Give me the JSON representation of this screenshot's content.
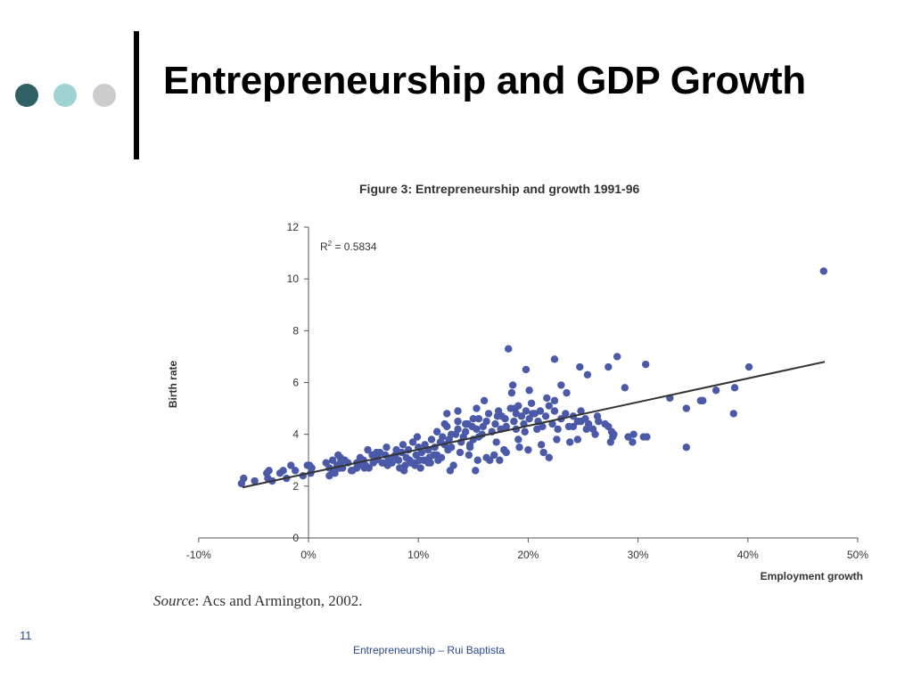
{
  "slide": {
    "title": "Entrepreneurship and GDP Growth",
    "number": "11",
    "footer": "Entrepreneurship – Rui Baptista",
    "bullet_colors": [
      "#2e6064",
      "#9fd2d2",
      "#cccccc"
    ]
  },
  "figure": {
    "title": "Figure 3: Entrepreneurship and growth 1991-96",
    "source_label": "Source",
    "source_text": ": Acs and Armington, 2002."
  },
  "chart_data": {
    "type": "scatter",
    "xlabel": "Employment growth",
    "ylabel": "Birth rate",
    "xlim": [
      -10,
      50
    ],
    "ylim": [
      0,
      12
    ],
    "x_ticks": [
      -10,
      0,
      10,
      20,
      30,
      40,
      50
    ],
    "x_tick_labels": [
      "-10%",
      "0%",
      "10%",
      "20%",
      "30%",
      "40%",
      "50%"
    ],
    "y_ticks": [
      0,
      2,
      4,
      6,
      8,
      10,
      12
    ],
    "y_tick_labels": [
      "0",
      "2",
      "4",
      "6",
      "8",
      "10",
      "12"
    ],
    "grid": false,
    "marker_color": "#4a5aa8",
    "trendline_color": "#333333",
    "annotation": {
      "text": "R",
      "superscript": "2",
      "value": " = 0.5834"
    },
    "trendline": {
      "x": [
        -6,
        47
      ],
      "y": [
        1.95,
        6.8
      ]
    },
    "points": {
      "x": [
        -6.1,
        -5.9,
        -4.9,
        -3.8,
        -3.6,
        -3.7,
        -3.3,
        -2.6,
        -2.3,
        -2.0,
        -1.6,
        -1.2,
        -0.5,
        -0.1,
        0.2,
        0.3,
        0.1,
        1.6,
        1.9,
        2.2,
        2.6,
        2.9,
        2.9,
        3.3,
        2.2,
        3.1,
        4.4,
        4.7,
        5.0,
        4.4,
        5.2,
        5.8,
        5.9,
        6.1,
        6.5,
        6.7,
        7.0,
        7.3,
        7.1,
        7.6,
        7.9,
        8.0,
        8.2,
        8.5,
        8.6,
        8.9,
        9.1,
        9.5,
        9.3,
        9.8,
        10.0,
        10.3,
        9.9,
        10.1,
        10.6,
        10.9,
        11.2,
        11.5,
        11.7,
        11.0,
        12.0,
        12.2,
        11.7,
        12.4,
        12.7,
        12.6,
        12.8,
        13.0,
        13.4,
        13.6,
        13.9,
        13.6,
        14.1,
        14.3,
        14.7,
        14.5,
        15.0,
        15.3,
        15.5,
        15.3,
        15.8,
        15.9,
        15.5,
        16.2,
        16.4,
        16.7,
        17.0,
        17.2,
        17.5,
        17.3,
        17.9,
        18.0,
        18.4,
        18.5,
        18.7,
        18.9,
        18.9,
        19.1,
        19.4,
        19.6,
        19.8,
        20.1,
        20.3,
        19.7,
        20.6,
        20.9,
        21.3,
        21.6,
        21.9,
        22.2,
        22.4,
        22.7,
        23.0,
        23.4,
        23.7,
        24.1,
        24.5,
        24.8,
        25.2,
        25.5,
        25.9,
        26.4,
        27.0,
        27.3,
        27.6,
        27.8,
        27.5,
        29.1,
        29.6,
        30.5,
        30.7,
        19.8,
        22.4,
        24.7,
        25.4,
        27.3,
        28.1,
        28.8,
        18.6,
        20.1,
        22.4,
        23.0,
        24.8,
        12.4,
        13.6,
        15.0,
        14.3,
        17.6,
        16.0,
        18.8,
        20.4,
        21.1,
        21.7,
        23.5,
        24.1,
        20.8,
        14.9,
        13.0,
        12.6,
        18.2,
        32.9,
        34.4,
        35.7,
        37.1,
        38.8,
        40.1,
        46.9,
        38.7,
        34.4,
        35.9,
        30.8,
        29.5,
        27.7,
        26.1,
        25.3,
        22.6,
        21.2,
        20.0,
        19.2,
        18.0,
        17.4,
        16.2,
        15.4,
        14.6,
        13.8,
        12.9,
        11.8,
        10.9,
        10.2,
        9.7,
        9.2,
        8.7,
        8.3,
        7.6,
        7.2,
        6.3,
        6.8,
        5.5,
        5.1,
        4.6,
        4.0,
        3.6,
        3.9,
        2.8,
        2.4,
        1.9,
        16.9,
        17.8,
        13.2,
        14.7,
        17.1,
        19.1,
        21.4,
        23.8,
        26.3,
        24.5,
        21.9,
        11.4,
        10.5,
        9.6,
        8.8,
        6.2,
        5.4,
        2.7,
        15.2,
        16.5,
        12.1,
        11.1
      ],
      "y": [
        2.1,
        2.3,
        2.2,
        2.5,
        2.6,
        2.3,
        2.2,
        2.5,
        2.6,
        2.3,
        2.8,
        2.6,
        2.4,
        2.8,
        2.5,
        2.7,
        2.8,
        2.9,
        2.7,
        3.0,
        2.8,
        3.1,
        2.9,
        3.0,
        2.6,
        2.7,
        2.9,
        3.1,
        3.0,
        2.7,
        2.8,
        3.2,
        2.9,
        3.0,
        3.3,
        2.9,
        3.2,
        3.0,
        3.5,
        3.1,
        3.2,
        3.4,
        3.0,
        3.3,
        3.6,
        3.1,
        3.4,
        3.7,
        2.9,
        3.2,
        3.5,
        3.3,
        3.9,
        3.0,
        3.6,
        3.4,
        3.8,
        3.5,
        3.2,
        3.1,
        3.7,
        3.9,
        4.1,
        3.6,
        3.4,
        4.3,
        3.8,
        3.5,
        4.0,
        4.2,
        3.7,
        4.5,
        3.9,
        4.1,
        3.6,
        4.4,
        3.8,
        4.2,
        4.6,
        5.0,
        4.0,
        4.3,
        3.9,
        4.5,
        4.8,
        4.1,
        4.4,
        4.7,
        4.2,
        4.9,
        4.6,
        4.3,
        5.0,
        5.6,
        4.5,
        4.8,
        4.2,
        5.1,
        4.7,
        4.4,
        4.9,
        4.6,
        5.2,
        4.1,
        4.8,
        4.5,
        4.3,
        4.7,
        5.1,
        4.4,
        4.9,
        4.2,
        4.6,
        4.8,
        4.3,
        4.7,
        4.5,
        4.9,
        4.6,
        4.4,
        4.2,
        4.5,
        4.4,
        4.3,
        4.1,
        4.0,
        3.7,
        3.9,
        4.0,
        3.9,
        6.7,
        6.5,
        6.9,
        6.6,
        6.3,
        6.6,
        7.0,
        5.8,
        5.9,
        5.7,
        5.3,
        5.9,
        4.5,
        4.4,
        4.9,
        4.6,
        4.4,
        4.7,
        5.3,
        5.0,
        4.8,
        4.9,
        5.4,
        5.6,
        4.3,
        4.2,
        4.3,
        4.0,
        4.8,
        7.3,
        5.4,
        5.0,
        5.3,
        5.7,
        5.8,
        6.6,
        10.3,
        4.8,
        3.5,
        5.3,
        3.9,
        3.7,
        3.9,
        4.0,
        4.2,
        3.8,
        3.6,
        3.4,
        3.5,
        3.3,
        3.0,
        3.1,
        3.0,
        3.2,
        3.3,
        2.6,
        3.0,
        2.9,
        2.7,
        2.8,
        3.0,
        2.6,
        2.7,
        2.9,
        2.8,
        3.1,
        2.9,
        2.7,
        2.7,
        2.8,
        2.6,
        2.9,
        2.6,
        2.7,
        2.5,
        2.4,
        3.2,
        3.4,
        2.8,
        3.5,
        3.7,
        3.8,
        3.3,
        3.7,
        4.7,
        3.8,
        3.1,
        3.2,
        3.0,
        2.9,
        2.8,
        3.3,
        3.4,
        3.2,
        2.6,
        3.0,
        3.1,
        2.9
      ]
    }
  }
}
